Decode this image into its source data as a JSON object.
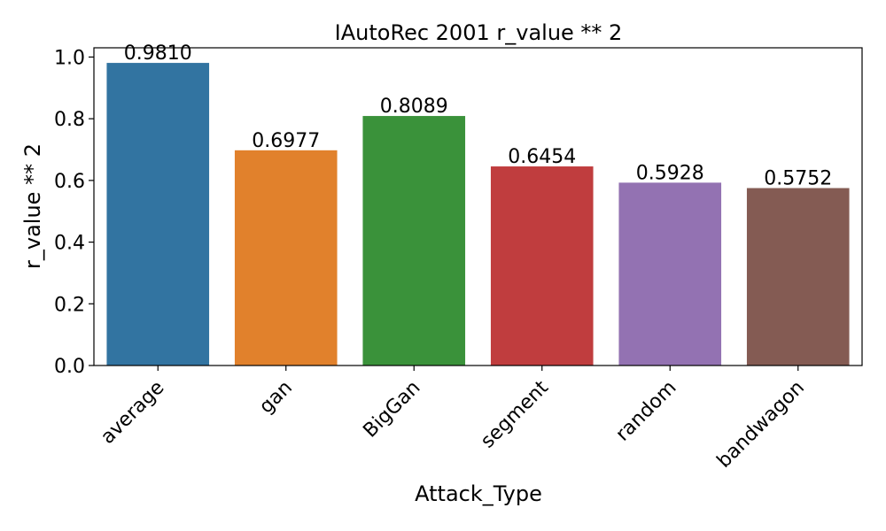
{
  "chart_data": {
    "type": "bar",
    "title": "IAutoRec  2001  r_value ** 2",
    "xlabel": "Attack_Type",
    "ylabel": "r_value ** 2",
    "categories": [
      "average",
      "gan",
      "BigGan",
      "segment",
      "random",
      "bandwagon"
    ],
    "values": [
      0.981,
      0.6977,
      0.8089,
      0.6454,
      0.5928,
      0.5752
    ],
    "value_labels": [
      "0.9810",
      "0.6977",
      "0.8089",
      "0.6454",
      "0.5928",
      "0.5752"
    ],
    "colors": [
      "#3274a1",
      "#e1812c",
      "#3a923a",
      "#c03d3e",
      "#9372b2",
      "#845b53"
    ],
    "ylim": [
      0,
      1.03
    ],
    "yticks": [
      0.0,
      0.2,
      0.4,
      0.6,
      0.8,
      1.0
    ],
    "ytick_labels": [
      "0.0",
      "0.2",
      "0.4",
      "0.6",
      "0.8",
      "1.0"
    ],
    "grid": false,
    "legend": false,
    "xtick_rotation": 45
  }
}
